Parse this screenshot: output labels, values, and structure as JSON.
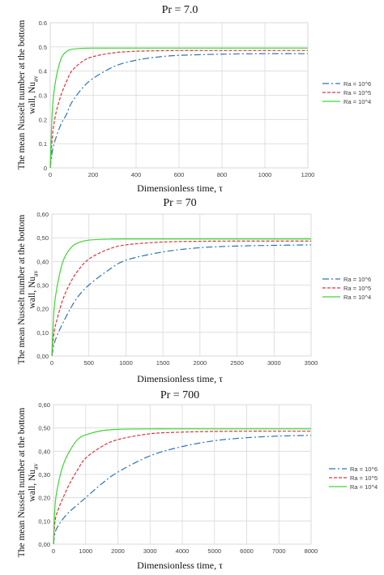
{
  "chart_data": [
    {
      "type": "line",
      "title": "Pr = 7.0",
      "xlabel": "Dimensionless time, τ",
      "ylabel_line1": "The mean Nusselt number at the bottom",
      "ylabel_line2": "wall, Nu",
      "ylabel_sub": "av",
      "xlim": [
        0,
        1200
      ],
      "ylim": [
        0,
        0.6
      ],
      "xticks": [
        "0",
        "200",
        "400",
        "600",
        "800",
        "1000",
        "1200"
      ],
      "yticks": [
        "0",
        "0.1",
        "0.2",
        "0.3",
        "0.4",
        "0.5",
        "0.6"
      ],
      "x": [
        0,
        10,
        25,
        50,
        75,
        100,
        150,
        200,
        300,
        400,
        500,
        600,
        800,
        1000,
        1200
      ],
      "series": [
        {
          "name": "Ra = 10^6",
          "values": [
            0.0,
            0.07,
            0.12,
            0.18,
            0.22,
            0.27,
            0.33,
            0.37,
            0.42,
            0.445,
            0.458,
            0.465,
            0.47,
            0.472,
            0.472
          ]
        },
        {
          "name": "Ra = 10^5",
          "values": [
            0.0,
            0.13,
            0.22,
            0.3,
            0.355,
            0.4,
            0.44,
            0.46,
            0.476,
            0.482,
            0.484,
            0.485,
            0.485,
            0.485,
            0.485
          ]
        },
        {
          "name": "Ra = 10^4",
          "values": [
            0.0,
            0.24,
            0.36,
            0.45,
            0.48,
            0.49,
            0.494,
            0.495,
            0.495,
            0.495,
            0.495,
            0.495,
            0.495,
            0.495,
            0.495
          ]
        }
      ],
      "colors": [
        "#2e75b6",
        "#e0343c",
        "#3cd631"
      ],
      "dashes": [
        "8,3,2,3",
        "4,2",
        ""
      ],
      "grid": true,
      "legend_position": "right"
    },
    {
      "type": "line",
      "title": "Pr = 70",
      "xlabel": "Dimensionless time, τ",
      "ylabel_line1": "The mean Nusselt number at the bottom",
      "ylabel_line2": "wall, Nu",
      "ylabel_sub": "av",
      "xlim": [
        0,
        3500
      ],
      "ylim": [
        0,
        0.6
      ],
      "xticks": [
        "0",
        "500",
        "1000",
        "1500",
        "2000",
        "2500",
        "3000",
        "3500"
      ],
      "yticks": [
        "0,00",
        "0,10",
        "0,20",
        "0,30",
        "0,40",
        "0,50",
        "0,60"
      ],
      "x": [
        0,
        30,
        75,
        150,
        250,
        350,
        500,
        750,
        1000,
        1500,
        2000,
        2500,
        3000,
        3500
      ],
      "series": [
        {
          "name": "Ra = 10^6",
          "values": [
            0.0,
            0.05,
            0.09,
            0.14,
            0.2,
            0.25,
            0.3,
            0.36,
            0.405,
            0.44,
            0.458,
            0.465,
            0.468,
            0.47
          ]
        },
        {
          "name": "Ra = 10^5",
          "values": [
            0.0,
            0.1,
            0.16,
            0.24,
            0.31,
            0.36,
            0.41,
            0.45,
            0.47,
            0.482,
            0.485,
            0.486,
            0.486,
            0.486
          ]
        },
        {
          "name": "Ra = 10^4",
          "values": [
            0.0,
            0.2,
            0.3,
            0.4,
            0.455,
            0.478,
            0.49,
            0.494,
            0.495,
            0.495,
            0.495,
            0.495,
            0.495,
            0.495
          ]
        }
      ],
      "colors": [
        "#2e75b6",
        "#e0343c",
        "#3cd631"
      ],
      "dashes": [
        "8,3,2,3",
        "4,2",
        ""
      ],
      "grid": true,
      "legend_position": "right"
    },
    {
      "type": "line",
      "title": "Pr = 700",
      "xlabel": "Dimensionless time, τ",
      "ylabel_line1": "The mean Nusselt number at the bottom",
      "ylabel_line2": "wall, Nu",
      "ylabel_sub": "av",
      "xlim": [
        0,
        8000
      ],
      "ylim": [
        0,
        0.6
      ],
      "xticks": [
        "0",
        "1000",
        "2000",
        "3000",
        "4000",
        "5000",
        "6000",
        "7000",
        "8000"
      ],
      "yticks": [
        "0,00",
        "0,10",
        "0,20",
        "0,30",
        "0,40",
        "0,50",
        "0,60"
      ],
      "x": [
        0,
        50,
        150,
        300,
        500,
        750,
        1000,
        1500,
        2000,
        3000,
        4000,
        5000,
        6000,
        7000,
        8000
      ],
      "series": [
        {
          "name": "Ra = 10^6",
          "values": [
            0.0,
            0.05,
            0.08,
            0.11,
            0.14,
            0.17,
            0.2,
            0.26,
            0.31,
            0.38,
            0.42,
            0.445,
            0.458,
            0.465,
            0.468
          ]
        },
        {
          "name": "Ra = 10^5",
          "values": [
            0.0,
            0.1,
            0.15,
            0.2,
            0.26,
            0.32,
            0.37,
            0.42,
            0.45,
            0.475,
            0.482,
            0.485,
            0.486,
            0.486,
            0.486
          ]
        },
        {
          "name": "Ra = 10^4",
          "values": [
            0.0,
            0.17,
            0.26,
            0.34,
            0.4,
            0.45,
            0.47,
            0.488,
            0.494,
            0.496,
            0.496,
            0.496,
            0.496,
            0.496,
            0.496
          ]
        }
      ],
      "colors": [
        "#2e75b6",
        "#e0343c",
        "#3cd631"
      ],
      "dashes": [
        "8,3,2,3",
        "4,2",
        ""
      ],
      "grid": true,
      "legend_position": "right"
    }
  ]
}
